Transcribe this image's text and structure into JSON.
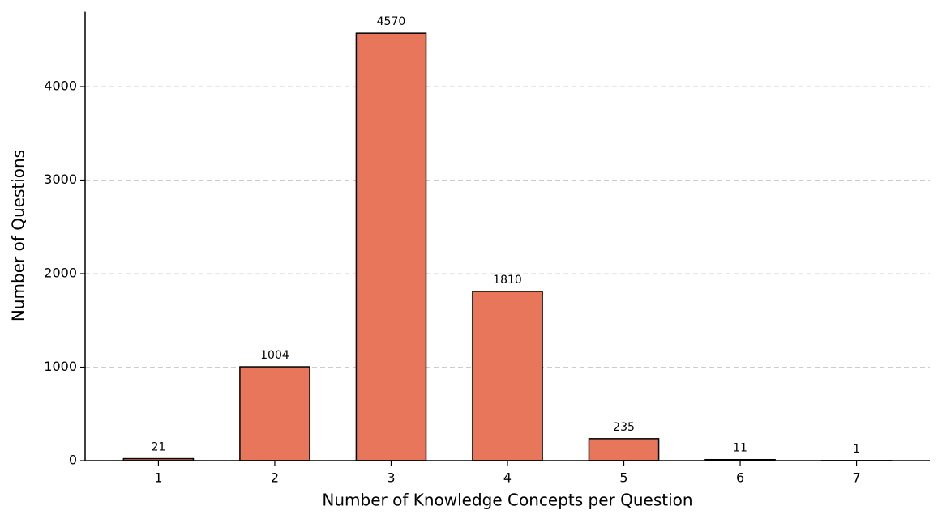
{
  "chart_data": {
    "type": "bar",
    "x_label": "Number of Knowledge Concepts per Question",
    "y_label": "Number of Questions",
    "x": [
      1,
      2,
      3,
      4,
      5,
      6,
      7
    ],
    "values": [
      21,
      1004,
      4570,
      1810,
      235,
      11,
      1
    ],
    "color": "#e8765a",
    "edge_color": "#000000",
    "xlim": [
      0.37,
      7.63
    ],
    "xticks": [
      1,
      2,
      3,
      4,
      5,
      6,
      7
    ],
    "ylim": [
      0,
      4800
    ],
    "yticks": [
      0,
      1000,
      2000,
      3000,
      4000
    ],
    "grid": true
  }
}
